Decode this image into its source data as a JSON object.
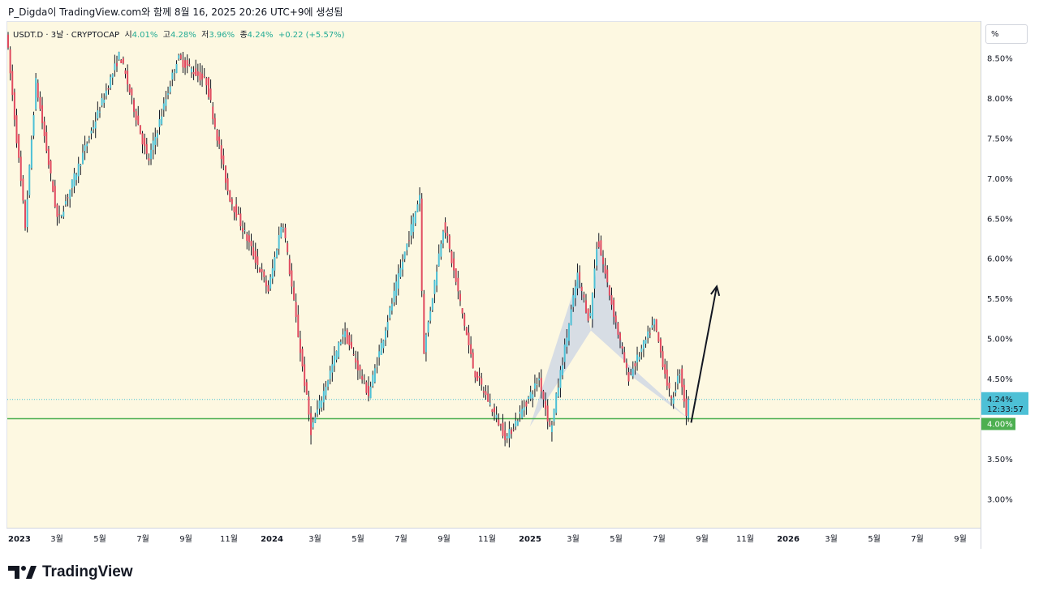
{
  "header": {
    "title": "P_Digda이 TradingView.com와 함께 8월 16, 2025 20:26 UTC+9에 생성됨"
  },
  "symbol": {
    "name": "USDT.D · 3날 · CRYPTOCAP",
    "open_label": "시",
    "open": "4.01%",
    "high_label": "고",
    "high": "4.28%",
    "low_label": "저",
    "low": "3.96%",
    "close_label": "종",
    "close": "4.24%",
    "change": "+0.22 (+5.57%)"
  },
  "unit_button": "%",
  "price_axis": {
    "labels": [
      "8.50%",
      "8.00%",
      "7.50%",
      "7.00%",
      "6.50%",
      "6.00%",
      "5.50%",
      "5.00%",
      "4.50%",
      "3.50%",
      "3.00%"
    ],
    "values": [
      8.5,
      8.0,
      7.5,
      7.0,
      6.5,
      6.0,
      5.5,
      5.0,
      4.5,
      3.5,
      3.0
    ],
    "current_price_label": "4.24%",
    "countdown": "12:33:57",
    "support_label": "4.00%"
  },
  "time_axis": {
    "labels": [
      "2023",
      "3월",
      "5월",
      "7월",
      "9월",
      "11월",
      "2024",
      "3월",
      "5월",
      "7월",
      "9월",
      "11월",
      "2025",
      "3월",
      "5월",
      "7월",
      "9월",
      "11월",
      "2026",
      "3월",
      "5월",
      "7월",
      "9월"
    ]
  },
  "logo": {
    "text": "TradingView"
  },
  "colors": {
    "up": "#4dc0d6",
    "down": "#e04a5f",
    "wick": "#131722",
    "support": "#4caf50",
    "current_price": "#4dc0d6",
    "pattern_fill": "#b8c6e8",
    "background": "#fdf8e1"
  },
  "chart_data": {
    "type": "candlestick",
    "symbol": "USDT.D",
    "interval": "3D",
    "ylim": [
      2.65,
      8.95
    ],
    "x_range": [
      "2023-01-01",
      "2026-09-30"
    ],
    "support_level": 4.0,
    "current_price": 4.24,
    "swing_points": [
      {
        "date": "2023-01-01",
        "value": 8.85
      },
      {
        "date": "2023-01-28",
        "value": 6.4
      },
      {
        "date": "2023-02-12",
        "value": 8.2
      },
      {
        "date": "2023-03-15",
        "value": 6.45
      },
      {
        "date": "2023-06-10",
        "value": 8.55
      },
      {
        "date": "2023-07-20",
        "value": 7.2
      },
      {
        "date": "2023-08-30",
        "value": 8.5
      },
      {
        "date": "2023-10-10",
        "value": 8.2
      },
      {
        "date": "2023-11-10",
        "value": 6.8
      },
      {
        "date": "2024-01-05",
        "value": 5.6
      },
      {
        "date": "2024-01-25",
        "value": 6.5
      },
      {
        "date": "2024-03-05",
        "value": 3.85
      },
      {
        "date": "2024-04-20",
        "value": 5.1
      },
      {
        "date": "2024-05-25",
        "value": 4.3
      },
      {
        "date": "2024-08-05",
        "value": 6.8
      },
      {
        "date": "2024-08-10",
        "value": 4.8
      },
      {
        "date": "2024-09-08",
        "value": 6.45
      },
      {
        "date": "2024-10-20",
        "value": 4.6
      },
      {
        "date": "2024-12-05",
        "value": 3.75
      },
      {
        "date": "2025-01-20",
        "value": 4.5
      },
      {
        "date": "2025-02-05",
        "value": 3.85
      },
      {
        "date": "2025-03-15",
        "value": 5.8
      },
      {
        "date": "2025-04-01",
        "value": 5.2
      },
      {
        "date": "2025-04-12",
        "value": 6.25
      },
      {
        "date": "2025-05-25",
        "value": 4.5
      },
      {
        "date": "2025-07-01",
        "value": 5.2
      },
      {
        "date": "2025-07-25",
        "value": 4.2
      },
      {
        "date": "2025-08-06",
        "value": 4.6
      },
      {
        "date": "2025-08-16",
        "value": 4.0
      }
    ],
    "last_candle": {
      "open": 4.01,
      "high": 4.28,
      "low": 3.96,
      "close": 4.24
    },
    "pattern": {
      "type": "shaded-triangles",
      "points": [
        {
          "date": "2025-01-05",
          "value": 3.9
        },
        {
          "date": "2025-03-15",
          "value": 5.8
        },
        {
          "date": "2025-04-01",
          "value": 5.1
        },
        {
          "date": "2025-04-12",
          "value": 6.25
        },
        {
          "date": "2025-05-25",
          "value": 4.55
        },
        {
          "date": "2025-08-16",
          "value": 4.0
        }
      ]
    },
    "arrow": {
      "from": {
        "date": "2025-08-20",
        "value": 3.95
      },
      "to": {
        "date": "2025-09-25",
        "value": 5.65
      }
    }
  }
}
